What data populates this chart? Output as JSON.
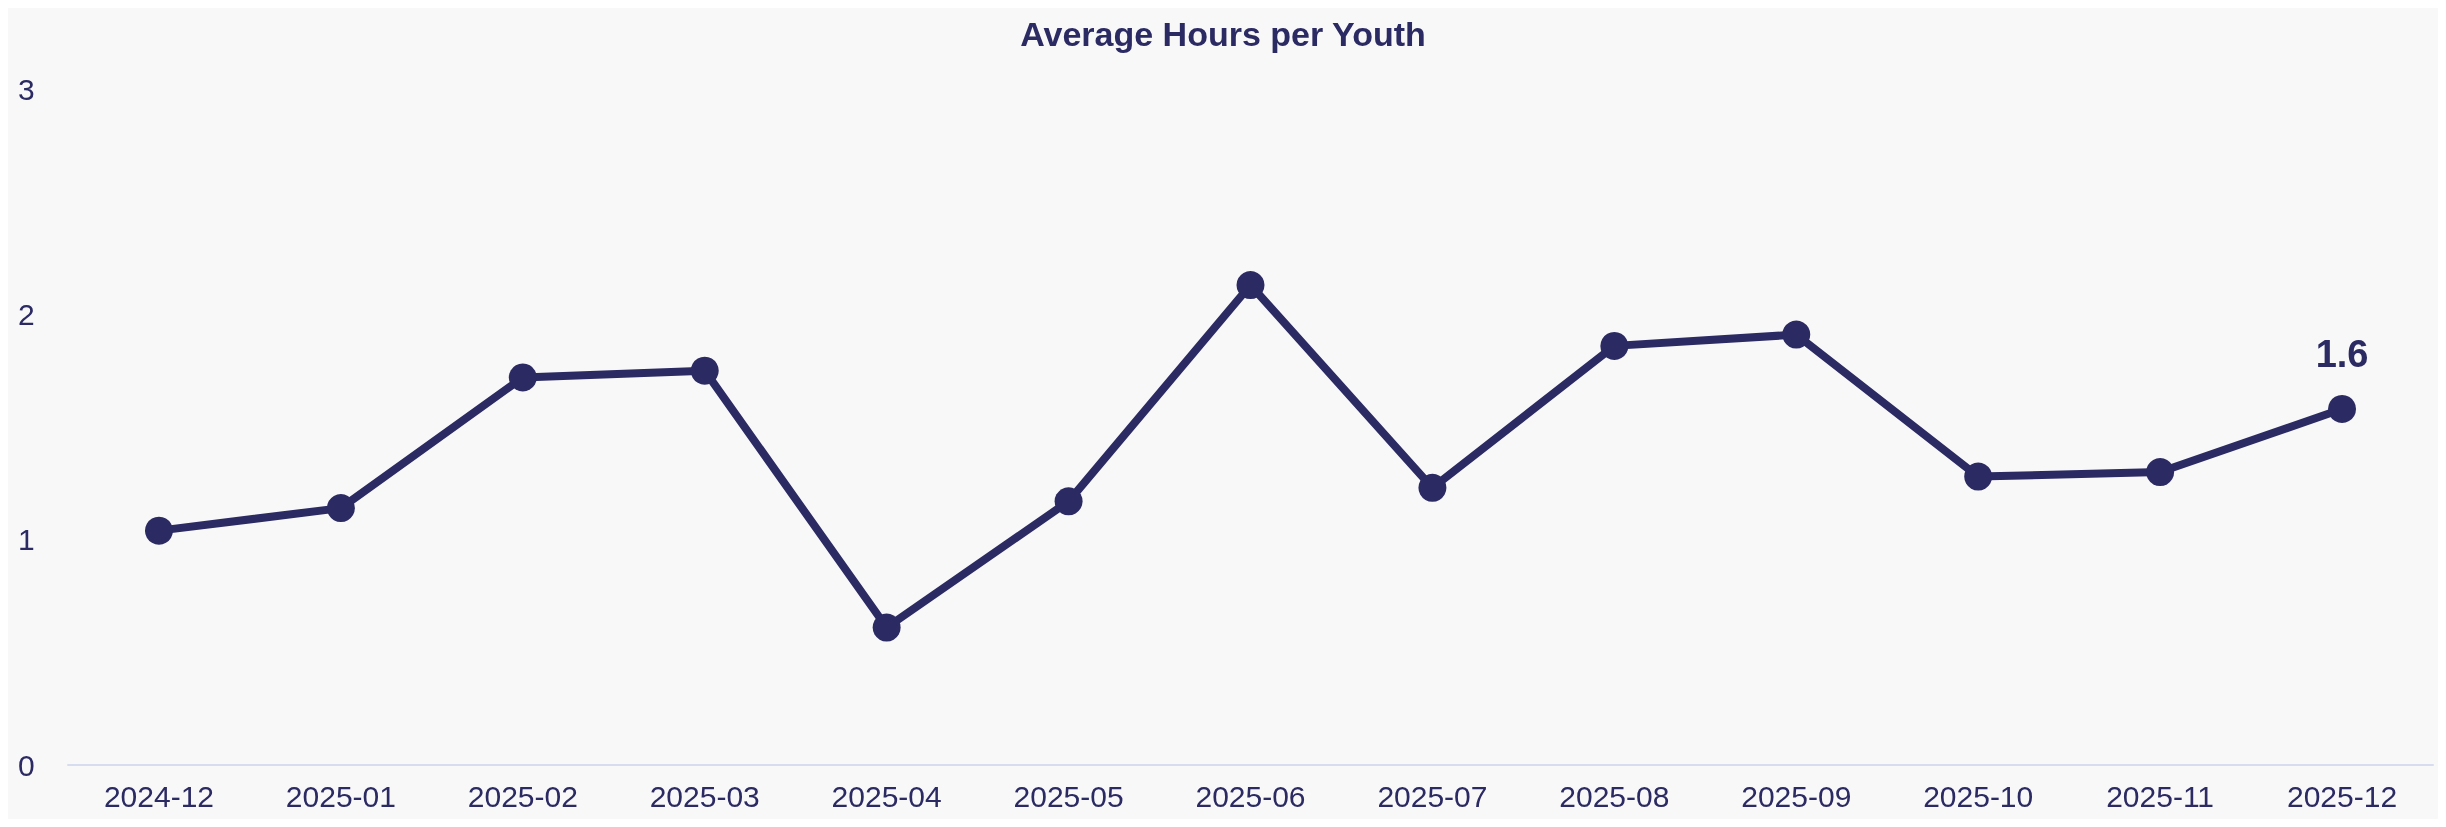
{
  "chart_data": {
    "type": "line",
    "title": "Average Hours per Youth",
    "categories": [
      "2024-12",
      "2025-01",
      "2025-02",
      "2025-03",
      "2025-04",
      "2025-05",
      "2025-06",
      "2025-07",
      "2025-08",
      "2025-09",
      "2025-10",
      "2025-11",
      "2025-12"
    ],
    "series": [
      {
        "color": "#2b2a63",
        "values": [
          1.04,
          1.14,
          1.72,
          1.75,
          0.61,
          1.17,
          2.13,
          1.23,
          1.86,
          1.91,
          1.28,
          1.3,
          1.58
        ],
        "value_labels": [
          null,
          null,
          null,
          null,
          null,
          null,
          null,
          null,
          null,
          null,
          null,
          null,
          "1.6"
        ]
      }
    ],
    "ylim": [
      0,
      3
    ],
    "yticks": [
      0,
      1,
      2,
      3
    ],
    "grid": false,
    "marker": "circle",
    "line_style": "solid"
  }
}
